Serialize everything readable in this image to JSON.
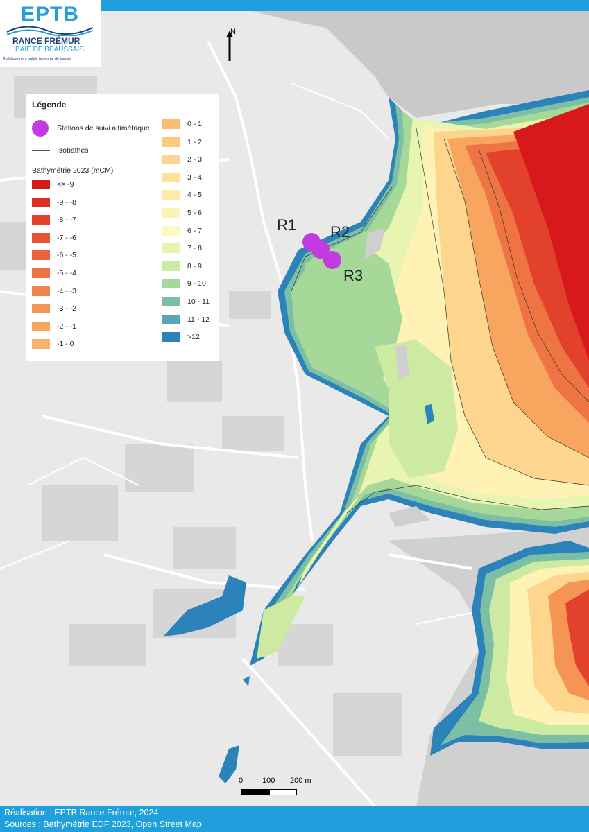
{
  "logo": {
    "name": "EPTB",
    "line1": "RANCE FRÉMUR",
    "line2": "BAIE DE BEAUSSAIS",
    "line3": "Établissement public territorial de bassin"
  },
  "north_label": "N",
  "legend": {
    "title": "Légende",
    "station_label": "Stations de suivi altimétrique",
    "isobath_label": "Isobathes",
    "bathy_title": "Bathymétrie 2023 (mCM)",
    "station_color": "#c23ae0",
    "classes": [
      {
        "label": "<= -9",
        "color": "#d7191c"
      },
      {
        "label": "-9 - -8",
        "color": "#dd3124"
      },
      {
        "label": "-8 - -7",
        "color": "#e2412b"
      },
      {
        "label": "-7 - -6",
        "color": "#e65233"
      },
      {
        "label": "-6 - -5",
        "color": "#ea623b"
      },
      {
        "label": "-5 - -4",
        "color": "#ee7443"
      },
      {
        "label": "-4 - -3",
        "color": "#f1854c"
      },
      {
        "label": "-3 - -2",
        "color": "#f49556"
      },
      {
        "label": "-2 - -1",
        "color": "#f7a55f"
      },
      {
        "label": "-1 - 0",
        "color": "#f9b26a"
      },
      {
        "label": "0 - 1",
        "color": "#fbbd75"
      },
      {
        "label": "1 - 2",
        "color": "#fcc981"
      },
      {
        "label": "2 - 3",
        "color": "#fdd58d"
      },
      {
        "label": "3 - 4",
        "color": "#fee19a"
      },
      {
        "label": "4 - 5",
        "color": "#feeaa8"
      },
      {
        "label": "5 - 6",
        "color": "#fef2b4"
      },
      {
        "label": "6 - 7",
        "color": "#fcfabf"
      },
      {
        "label": "7 - 8",
        "color": "#e8f5b1"
      },
      {
        "label": "8 - 9",
        "color": "#cdeaa3"
      },
      {
        "label": "9 - 10",
        "color": "#a6d899"
      },
      {
        "label": "10 - 11",
        "color": "#7dbfa5"
      },
      {
        "label": "11 - 12",
        "color": "#5aa5ba"
      },
      {
        "label": ">12",
        "color": "#2b83ba"
      }
    ]
  },
  "stations": [
    {
      "label": "R1"
    },
    {
      "label": "R2"
    },
    {
      "label": "R3"
    }
  ],
  "scale": {
    "labels": [
      "0",
      "100",
      "200 m"
    ]
  },
  "footer": {
    "line1": "Réalisation : EPTB Rance Frémur, 2024",
    "line2": "Sources : Bathymétrie EDF 2023, Open Street Map"
  },
  "colors": {
    "accent": "#1fa0dc",
    "land": "#e9e9e9",
    "road": "#ffffff",
    "building": "#d4d4d4",
    "water": "#c9c9c9"
  }
}
